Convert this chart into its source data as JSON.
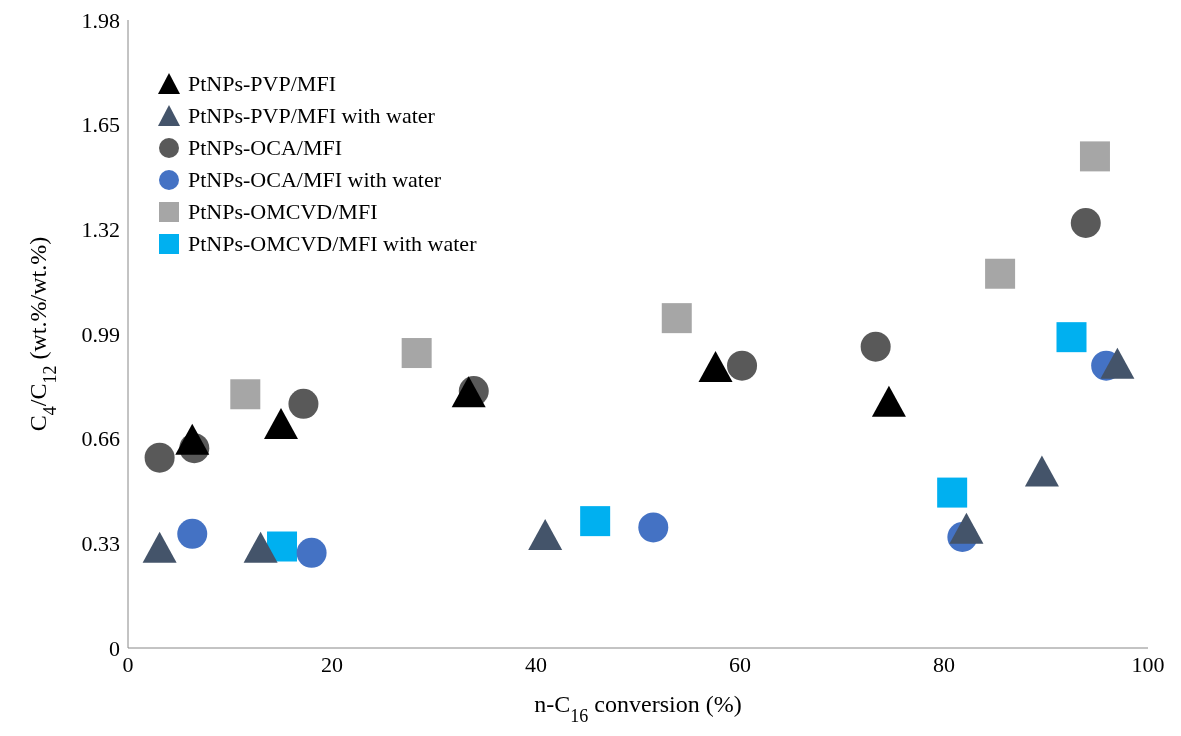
{
  "chart_data": {
    "type": "scatter",
    "xlabel": "n-C$_{16}$ conversion (%)",
    "ylabel": "C$_{4}$/C$_{12}$ (wt.%/wt.%)",
    "xlim": [
      0,
      100
    ],
    "xticks": [
      0,
      20,
      40,
      60,
      80,
      100
    ],
    "ylim": [
      0,
      1.98
    ],
    "yticks": [
      0,
      0.33,
      0.66,
      0.99,
      1.32,
      1.65,
      1.98
    ],
    "grid": false,
    "legend": "top left",
    "series": [
      {
        "name": "PtNPs-PVP/MFI",
        "color": "#000000",
        "marker": "triangle",
        "x": [
          6.3,
          15.0,
          33.4,
          57.6,
          74.6
        ],
        "values": [
          0.65,
          0.7,
          0.8,
          0.88,
          0.77
        ]
      },
      {
        "name": "PtNPs-PVP/MFI with water",
        "color": "#44546a",
        "marker": "triangle",
        "x": [
          3.1,
          13.0,
          40.9,
          82.2,
          89.6,
          97.0
        ],
        "values": [
          0.31,
          0.31,
          0.35,
          0.37,
          0.55,
          0.89
        ]
      },
      {
        "name": "PtNPs-OCA/MFI",
        "color": "#595959",
        "marker": "circle",
        "x": [
          3.1,
          6.5,
          17.2,
          33.9,
          60.2,
          73.3,
          93.9
        ],
        "values": [
          0.6,
          0.63,
          0.77,
          0.81,
          0.89,
          0.95,
          1.34
        ]
      },
      {
        "name": "PtNPs-OCA/MFI with water",
        "color": "#4472c4",
        "marker": "circle",
        "x": [
          6.3,
          18.0,
          51.5,
          81.8,
          95.9
        ],
        "values": [
          0.36,
          0.3,
          0.38,
          0.35,
          0.89
        ]
      },
      {
        "name": "PtNPs-OMCVD/MFI",
        "color": "#a6a6a6",
        "marker": "square",
        "x": [
          11.5,
          28.3,
          53.8,
          85.5,
          94.8
        ],
        "values": [
          0.8,
          0.93,
          1.04,
          1.18,
          1.55
        ]
      },
      {
        "name": "PtNPs-OMCVD/MFI with water",
        "color": "#00b0f0",
        "marker": "square",
        "x": [
          15.1,
          45.8,
          80.8,
          92.5
        ],
        "values": [
          0.32,
          0.4,
          0.49,
          0.98
        ]
      }
    ]
  }
}
